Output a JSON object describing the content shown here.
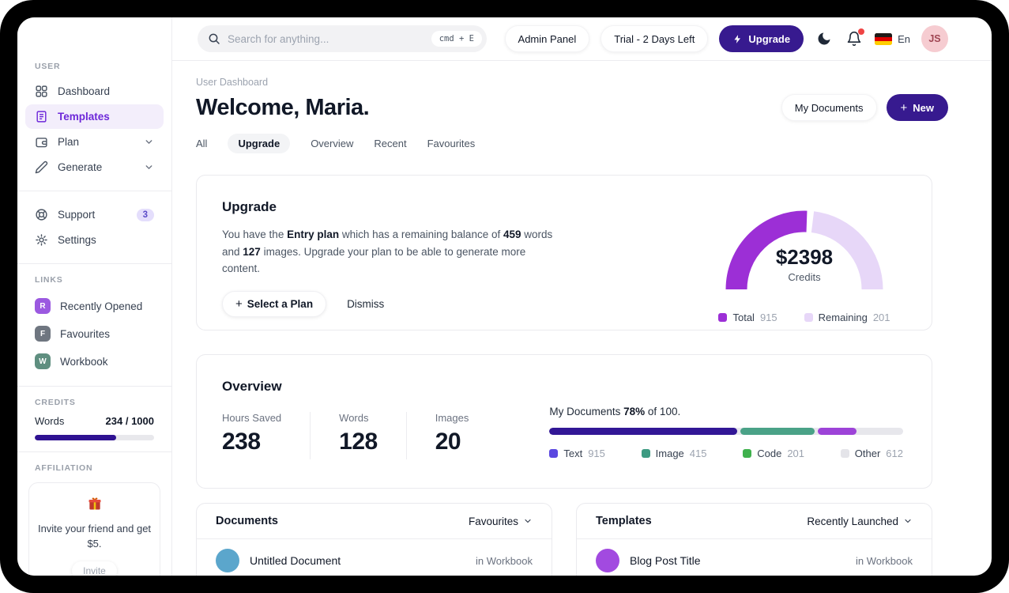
{
  "colors": {
    "primary_indigo": "#371a8f",
    "sidebar_active_text": "#6d28d9",
    "sidebar_active_bg": "#f3eefb",
    "notification_red": "#ef4444",
    "avatar_bg": "#f6ccd1",
    "credits_fill": "#2f1292"
  },
  "sidebar": {
    "section_user": "USER",
    "nav": [
      {
        "label": "Dashboard"
      },
      {
        "label": "Templates"
      },
      {
        "label": "Plan"
      },
      {
        "label": "Generate"
      }
    ],
    "support": {
      "label": "Support",
      "badge": "3"
    },
    "settings": {
      "label": "Settings"
    },
    "section_links": "LINKS",
    "links": [
      {
        "initial": "R",
        "label": "Recently Opened",
        "color": "#9b59e0"
      },
      {
        "initial": "F",
        "label": "Favourites",
        "color": "#6f7680"
      },
      {
        "initial": "W",
        "label": "Workbook",
        "color": "#5f8f80"
      }
    ],
    "section_credits": "CREDITS",
    "credits": {
      "label": "Words",
      "value": "234 / 1000",
      "fill_pct": 68,
      "fill_color": "#2f1292"
    },
    "section_affiliation": "AFFILIATION",
    "affiliation": {
      "text": "Invite your friend and get $5.",
      "button": "Invite"
    }
  },
  "header": {
    "search_placeholder": "Search for anything...",
    "shortcut": "cmd + E",
    "admin_panel": "Admin Panel",
    "trial": "Trial - 2 Days Left",
    "upgrade": "Upgrade",
    "language": "En",
    "avatar_initials": "JS"
  },
  "main": {
    "breadcrumb": "User Dashboard",
    "title": "Welcome, Maria.",
    "my_documents_btn": "My Documents",
    "new_btn": "New",
    "tabs": [
      {
        "label": "All"
      },
      {
        "label": "Upgrade"
      },
      {
        "label": "Overview"
      },
      {
        "label": "Recent"
      },
      {
        "label": "Favourites"
      }
    ]
  },
  "upgrade_card": {
    "title": "Upgrade",
    "body": {
      "t1": "You have the ",
      "b1": "Entry plan",
      "t2": " which has a remaining balance of ",
      "b2": "459",
      "t3": " words and ",
      "b3": "127",
      "t4": " images. Upgrade your plan to be able to generate more content."
    },
    "select_plan_btn": "Select a Plan",
    "dismiss_btn": "Dismiss",
    "gauge": {
      "amount": "$2398",
      "caption": "Credits",
      "segments": [
        {
          "label": "Total",
          "value": "915",
          "color": "#9c2fd6",
          "from_deg": 180,
          "to_deg": 88
        },
        {
          "label": "Remaining",
          "value": "201",
          "color": "#e7d7f8",
          "from_deg": 83,
          "to_deg": 0
        }
      ]
    }
  },
  "overview_card": {
    "title": "Overview",
    "stats": [
      {
        "label": "Hours Saved",
        "value": "238"
      },
      {
        "label": "Words",
        "value": "128"
      },
      {
        "label": "Images",
        "value": "20"
      }
    ],
    "progress_label": {
      "prefix": "My Documents ",
      "percent": "78%",
      "suffix": " of 100."
    },
    "bar": {
      "track_color": "#e7e7ec",
      "segments": [
        {
          "label": "Text",
          "value": "915",
          "color": "#321796",
          "width_pct": 53,
          "legend_color": "#5b48e0"
        },
        {
          "label": "Image",
          "value": "415",
          "color": "#4aa287",
          "width_pct": 21,
          "legend_color": "#3d9b82"
        },
        {
          "label": "Code",
          "value": "201",
          "color": "#9d43d8",
          "width_pct": 11,
          "legend_color": "#3fb14d"
        },
        {
          "label": "Other",
          "value": "612",
          "color": "#e7e7ec",
          "width_pct": 0,
          "legend_color": "#e4e4e9"
        }
      ]
    }
  },
  "documents_card": {
    "title": "Documents",
    "filter": "Favourites",
    "rows": [
      {
        "title": "Untitled Document",
        "location": "in Workbook",
        "avatar_color": "#5ba6cc"
      }
    ]
  },
  "templates_card": {
    "title": "Templates",
    "filter": "Recently Launched",
    "rows": [
      {
        "title": "Blog Post Title",
        "location": "in Workbook",
        "avatar_color": "#a24ae0"
      }
    ]
  },
  "chart_data": [
    {
      "type": "pie",
      "variant": "half-donut-gauge",
      "title": "Credits",
      "center_label": "$2398",
      "series": [
        {
          "name": "Total",
          "value": 915
        },
        {
          "name": "Remaining",
          "value": 201
        }
      ],
      "legend_position": "bottom"
    },
    {
      "type": "bar",
      "variant": "stacked-progress",
      "title": "My Documents 78% of 100.",
      "series": [
        {
          "name": "Text",
          "value": 915
        },
        {
          "name": "Image",
          "value": 415
        },
        {
          "name": "Code",
          "value": 201
        },
        {
          "name": "Other",
          "value": 612
        }
      ]
    }
  ]
}
